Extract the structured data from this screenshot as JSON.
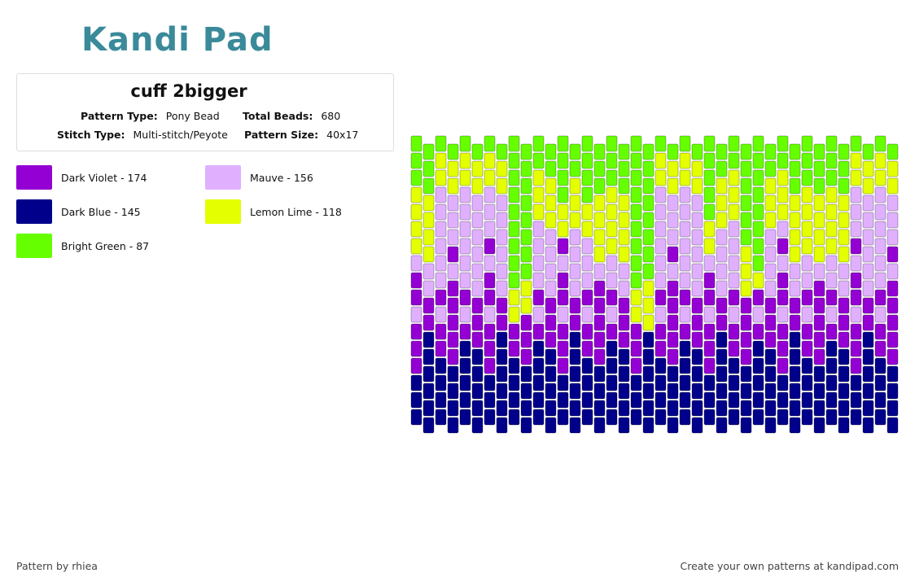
{
  "header": {
    "logo": "Kandi Pad",
    "title": "cuff 2bigger",
    "fields": [
      {
        "label": "Pattern Type:",
        "value": "Pony Bead"
      },
      {
        "label": "Total Beads:",
        "value": "680"
      },
      {
        "label": "Stitch Type:",
        "value": "Multi-stitch/Peyote"
      },
      {
        "label": "Pattern Size:",
        "value": "40x17"
      }
    ]
  },
  "legend": [
    {
      "label": "Dark Violet - 174",
      "color": "#9400d3"
    },
    {
      "label": "Mauve - 156",
      "color": "#e0b0ff"
    },
    {
      "label": "Dark Blue - 145",
      "color": "#00008b"
    },
    {
      "label": "Lemon Lime - 118",
      "color": "#e3ff00"
    },
    {
      "label": "Bright Green - 87",
      "color": "#66ff00"
    }
  ],
  "footer": {
    "left": "Pattern by rhiea",
    "right": "Create your own patterns at kandipad.com"
  }
}
